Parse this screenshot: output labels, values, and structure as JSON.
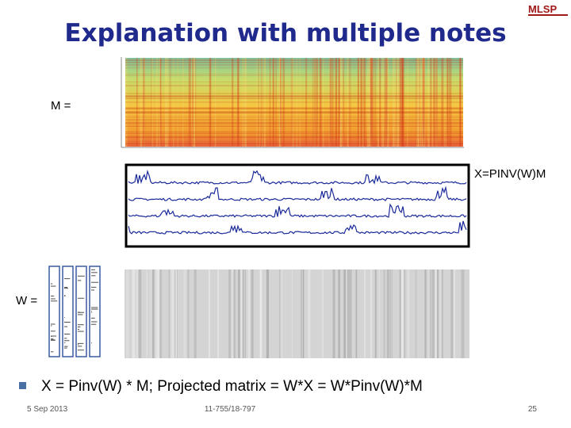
{
  "header": {
    "title": "Explanation with multiple notes",
    "logo": "MLSP"
  },
  "labels": {
    "m": "M =",
    "x": "X=PINV(W)M",
    "w": "W ="
  },
  "bullets": [
    "X = Pinv(W) * M; Projected matrix = W*X = W*Pinv(W)*M"
  ],
  "footer": {
    "date": "5 Sep 2013",
    "course": "11-755/18-797",
    "page": "25"
  }
}
